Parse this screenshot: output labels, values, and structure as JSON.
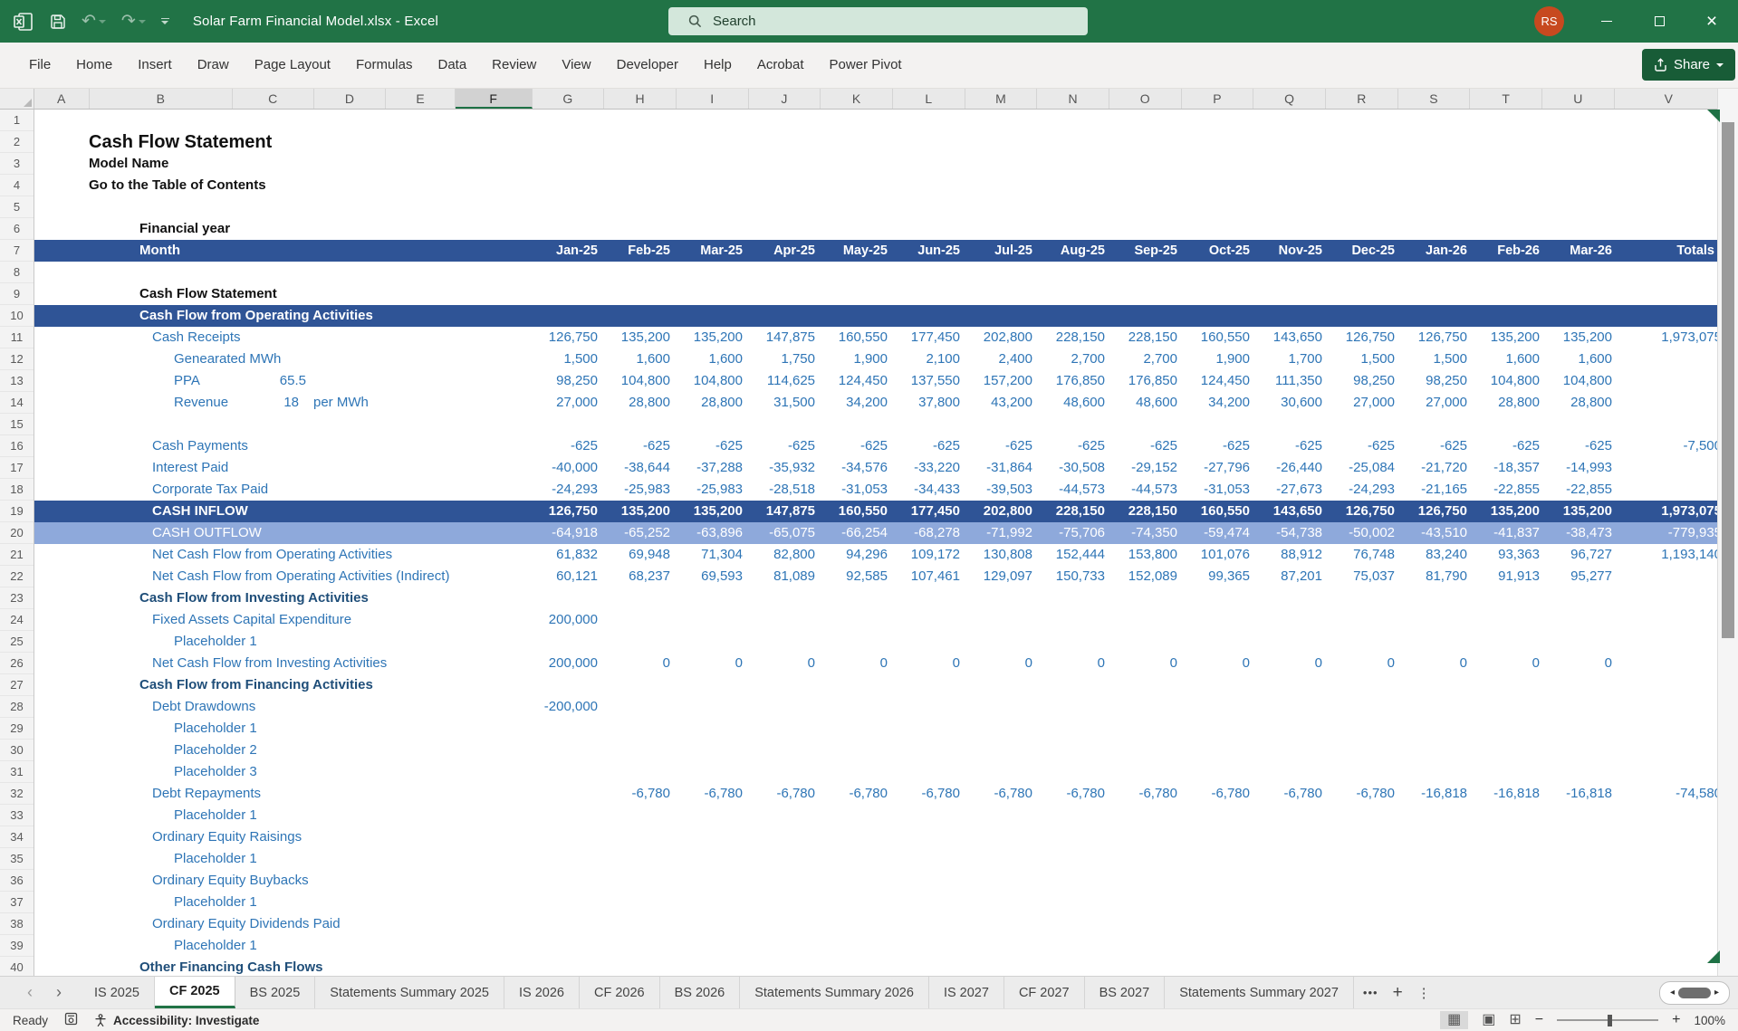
{
  "titlebar": {
    "title": "Solar Farm Financial Model.xlsx  -  Excel",
    "search_placeholder": "Search",
    "avatar_initials": "RS"
  },
  "menu": {
    "items": [
      "File",
      "Home",
      "Insert",
      "Draw",
      "Page Layout",
      "Formulas",
      "Data",
      "Review",
      "View",
      "Developer",
      "Help",
      "Acrobat",
      "Power Pivot"
    ],
    "share_label": "Share"
  },
  "grid": {
    "column_letters": [
      "A",
      "B",
      "C",
      "D",
      "E",
      "F",
      "G",
      "H",
      "I",
      "J",
      "K",
      "L",
      "M",
      "N",
      "O",
      "P",
      "Q",
      "R",
      "S",
      "T",
      "U",
      "V"
    ],
    "selected_column": "F",
    "row_count": 40
  },
  "sheet": {
    "months": [
      "Jan-25",
      "Feb-25",
      "Mar-25",
      "Apr-25",
      "May-25",
      "Jun-25",
      "Jul-25",
      "Aug-25",
      "Sep-25",
      "Oct-25",
      "Nov-25",
      "Dec-25",
      "Jan-26",
      "Feb-26",
      "Mar-26"
    ],
    "totals_label": "Totals",
    "rows": [
      {
        "r": 2,
        "style": "title-lg",
        "ind": 0,
        "label": "Cash Flow Statement"
      },
      {
        "r": 3,
        "style": "title",
        "ind": 0,
        "label": "Model Name"
      },
      {
        "r": 4,
        "style": "title",
        "ind": 0,
        "label": "Go to the Table of Contents"
      },
      {
        "r": 6,
        "style": "fy",
        "ind": 1,
        "label": "Financial year"
      },
      {
        "r": 7,
        "style": "months",
        "ind": 1,
        "label": "Month"
      },
      {
        "r": 9,
        "style": "black-section",
        "ind": 1,
        "label": "Cash Flow Statement"
      },
      {
        "r": 10,
        "style": "band-dark",
        "ind": 1,
        "label": "Cash Flow from Operating Activities"
      },
      {
        "r": 11,
        "style": "item",
        "ind": 2,
        "label": "Cash Receipts",
        "values": [
          "126,750",
          "135,200",
          "135,200",
          "147,875",
          "160,550",
          "177,450",
          "202,800",
          "228,150",
          "228,150",
          "160,550",
          "143,650",
          "126,750",
          "126,750",
          "135,200",
          "135,200",
          "1,973,075"
        ]
      },
      {
        "r": 12,
        "style": "sub",
        "ind": 3,
        "label": "Genearated MWh",
        "values": [
          "1,500",
          "1,600",
          "1,600",
          "1,750",
          "1,900",
          "2,100",
          "2,400",
          "2,700",
          "2,700",
          "1,900",
          "1,700",
          "1,500",
          "1,500",
          "1,600",
          "1,600",
          ""
        ]
      },
      {
        "r": 13,
        "style": "sub",
        "ind": 3,
        "label": "PPA",
        "c_value": "65.5",
        "values": [
          "98,250",
          "104,800",
          "104,800",
          "114,625",
          "124,450",
          "137,550",
          "157,200",
          "176,850",
          "176,850",
          "124,450",
          "111,350",
          "98,250",
          "98,250",
          "104,800",
          "104,800",
          ""
        ]
      },
      {
        "r": 14,
        "style": "sub",
        "ind": 3,
        "label": "Revenue",
        "d_value": "18",
        "d_unit": "per MWh",
        "values": [
          "27,000",
          "28,800",
          "28,800",
          "31,500",
          "34,200",
          "37,800",
          "43,200",
          "48,600",
          "48,600",
          "34,200",
          "30,600",
          "27,000",
          "27,000",
          "28,800",
          "28,800",
          ""
        ]
      },
      {
        "r": 16,
        "style": "item",
        "ind": 2,
        "label": "Cash Payments",
        "flag": true,
        "values": [
          "-625",
          "-625",
          "-625",
          "-625",
          "-625",
          "-625",
          "-625",
          "-625",
          "-625",
          "-625",
          "-625",
          "-625",
          "-625",
          "-625",
          "-625",
          "-7,500"
        ]
      },
      {
        "r": 17,
        "style": "item",
        "ind": 2,
        "label": "Interest Paid",
        "values": [
          "-40,000",
          "-38,644",
          "-37,288",
          "-35,932",
          "-34,576",
          "-33,220",
          "-31,864",
          "-30,508",
          "-29,152",
          "-27,796",
          "-26,440",
          "-25,084",
          "-21,720",
          "-18,357",
          "-14,993",
          ""
        ]
      },
      {
        "r": 18,
        "style": "item",
        "ind": 2,
        "label": "Corporate Tax Paid",
        "values": [
          "-24,293",
          "-25,983",
          "-25,983",
          "-28,518",
          "-31,053",
          "-34,433",
          "-39,503",
          "-44,573",
          "-44,573",
          "-31,053",
          "-27,673",
          "-24,293",
          "-21,165",
          "-22,855",
          "-22,855",
          ""
        ]
      },
      {
        "r": 19,
        "style": "band-dark",
        "ind": 2,
        "label": "CASH INFLOW",
        "values": [
          "126,750",
          "135,200",
          "135,200",
          "147,875",
          "160,550",
          "177,450",
          "202,800",
          "228,150",
          "228,150",
          "160,550",
          "143,650",
          "126,750",
          "126,750",
          "135,200",
          "135,200",
          "1,973,075"
        ]
      },
      {
        "r": 20,
        "style": "band-light",
        "ind": 2,
        "label": "CASH OUTFLOW",
        "values": [
          "-64,918",
          "-65,252",
          "-63,896",
          "-65,075",
          "-66,254",
          "-68,278",
          "-71,992",
          "-75,706",
          "-74,350",
          "-59,474",
          "-54,738",
          "-50,002",
          "-43,510",
          "-41,837",
          "-38,473",
          "-779,935"
        ]
      },
      {
        "r": 21,
        "style": "item",
        "ind": 2,
        "label": "Net Cash Flow from Operating Activities",
        "values": [
          "61,832",
          "69,948",
          "71,304",
          "82,800",
          "94,296",
          "109,172",
          "130,808",
          "152,444",
          "153,800",
          "101,076",
          "88,912",
          "76,748",
          "83,240",
          "93,363",
          "96,727",
          "1,193,140"
        ]
      },
      {
        "r": 22,
        "style": "item",
        "ind": 2,
        "label": "Net Cash Flow from Operating Activities (Indirect)",
        "values": [
          "60,121",
          "68,237",
          "69,593",
          "81,089",
          "92,585",
          "107,461",
          "129,097",
          "150,733",
          "152,089",
          "99,365",
          "87,201",
          "75,037",
          "81,790",
          "91,913",
          "95,277",
          ""
        ]
      },
      {
        "r": 23,
        "style": "section",
        "ind": 1,
        "label": "Cash Flow from Investing Activities"
      },
      {
        "r": 24,
        "style": "item",
        "ind": 2,
        "label": "Fixed Assets Capital Expenditure",
        "values": [
          "200,000",
          "",
          "",
          "",
          "",
          "",
          "",
          "",
          "",
          "",
          "",
          "",
          "",
          "",
          "",
          ""
        ]
      },
      {
        "r": 25,
        "style": "sub",
        "ind": 3,
        "label": "Placeholder 1"
      },
      {
        "r": 26,
        "style": "item",
        "ind": 2,
        "label": "Net Cash Flow from Investing Activities",
        "values": [
          "200,000",
          "0",
          "0",
          "0",
          "0",
          "0",
          "0",
          "0",
          "0",
          "0",
          "0",
          "0",
          "0",
          "0",
          "0",
          ""
        ]
      },
      {
        "r": 27,
        "style": "section",
        "ind": 1,
        "label": "Cash Flow from Financing Activities"
      },
      {
        "r": 28,
        "style": "item",
        "ind": 2,
        "label": "Debt Drawdowns",
        "values": [
          "-200,000",
          "",
          "",
          "",
          "",
          "",
          "",
          "",
          "",
          "",
          "",
          "",
          "",
          "",
          "",
          ""
        ]
      },
      {
        "r": 29,
        "style": "sub",
        "ind": 3,
        "label": "Placeholder 1"
      },
      {
        "r": 30,
        "style": "sub",
        "ind": 3,
        "label": "Placeholder 2"
      },
      {
        "r": 31,
        "style": "sub",
        "ind": 3,
        "label": "Placeholder 3"
      },
      {
        "r": 32,
        "style": "item",
        "ind": 2,
        "label": "Debt Repayments",
        "flag": true,
        "values": [
          "",
          "-6,780",
          "-6,780",
          "-6,780",
          "-6,780",
          "-6,780",
          "-6,780",
          "-6,780",
          "-6,780",
          "-6,780",
          "-6,780",
          "-6,780",
          "-16,818",
          "-16,818",
          "-16,818",
          "-74,580"
        ]
      },
      {
        "r": 33,
        "style": "sub",
        "ind": 3,
        "label": "Placeholder 1"
      },
      {
        "r": 34,
        "style": "item",
        "ind": 2,
        "label": "Ordinary Equity Raisings"
      },
      {
        "r": 35,
        "style": "sub",
        "ind": 3,
        "label": "Placeholder 1"
      },
      {
        "r": 36,
        "style": "item",
        "ind": 2,
        "label": "Ordinary Equity Buybacks"
      },
      {
        "r": 37,
        "style": "sub",
        "ind": 3,
        "label": "Placeholder 1"
      },
      {
        "r": 38,
        "style": "item",
        "ind": 2,
        "label": "Ordinary Equity Dividends Paid"
      },
      {
        "r": 39,
        "style": "sub",
        "ind": 3,
        "label": "Placeholder 1"
      },
      {
        "r": 40,
        "style": "section",
        "ind": 1,
        "label": "Other Financing Cash Flows"
      }
    ]
  },
  "tabs": {
    "sheets": [
      "IS 2025",
      "CF 2025",
      "BS 2025",
      "Statements Summary 2025",
      "IS 2026",
      "CF 2026",
      "BS 2026",
      "Statements Summary 2026",
      "IS 2027",
      "CF 2027",
      "BS 2027",
      "Statements Summary 2027"
    ],
    "active": "CF 2025",
    "active_index": 1
  },
  "statusbar": {
    "ready_label": "Ready",
    "accessibility_label": "Accessibility: Investigate",
    "zoom_level": "100%"
  },
  "colors": {
    "titlebar_green": "#217346",
    "band_dark": "#2F5496",
    "band_light": "#8EA9DB",
    "data_blue": "#2E75B6",
    "section_blue": "#1F4E79",
    "share_green": "#185C37",
    "avatar_orange": "#C7491F",
    "flag_green": "#1E7145"
  }
}
